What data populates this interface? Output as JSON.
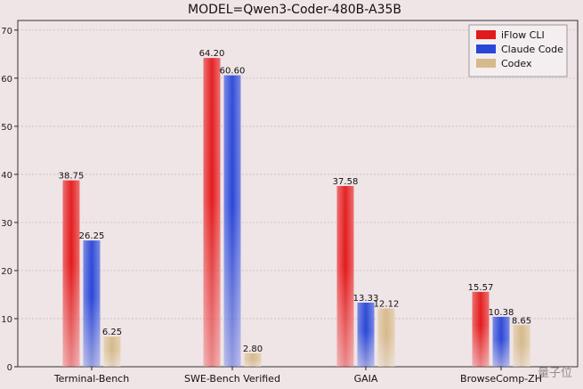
{
  "colors": {
    "iflow": "#e31a1c",
    "claude": "#2a46d6",
    "codex": "#d6b98c",
    "background": "#efe4e6",
    "grid": "#b8b8b8"
  },
  "watermark": "量子位",
  "chart_data": {
    "type": "bar",
    "title": "MODEL=Qwen3-Coder-480B-A35B",
    "xlabel": "",
    "ylabel": "",
    "ylim": [
      0,
      72
    ],
    "yticks": [
      0,
      10,
      20,
      30,
      40,
      50,
      60,
      70
    ],
    "yticks_labels": [
      "0",
      "10",
      "20",
      "30",
      "40",
      "50",
      "60",
      "70"
    ],
    "grid": true,
    "legend_position": "top-right",
    "categories": [
      "Terminal-Bench",
      "SWE-Bench Verified",
      "GAIA",
      "BrowseComp-ZH"
    ],
    "series": [
      {
        "name": "iFlow CLI",
        "values": [
          38.75,
          64.2,
          37.58,
          15.57
        ],
        "labels": [
          "38.75",
          "64.20",
          "37.58",
          "15.57"
        ]
      },
      {
        "name": "Claude Code",
        "values": [
          26.25,
          60.6,
          13.33,
          10.38
        ],
        "labels": [
          "26.25",
          "60.60",
          "13.33",
          "10.38"
        ]
      },
      {
        "name": "Codex",
        "values": [
          6.25,
          2.8,
          12.12,
          8.65
        ],
        "labels": [
          "6.25",
          "2.80",
          "12.12",
          "8.65"
        ]
      }
    ]
  }
}
